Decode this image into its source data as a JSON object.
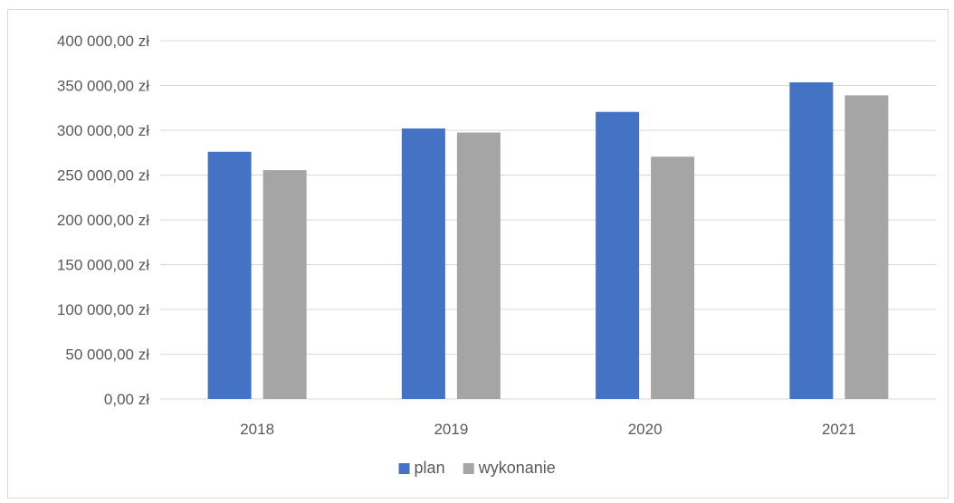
{
  "chart_data": {
    "type": "bar",
    "categories": [
      "2018",
      "2019",
      "2020",
      "2021"
    ],
    "series": [
      {
        "name": "plan",
        "values": [
          276000,
          302000,
          320500,
          353500
        ],
        "color": "#4472C4"
      },
      {
        "name": "wykonanie",
        "values": [
          255500,
          297500,
          270500,
          339000
        ],
        "color": "#A5A5A5"
      }
    ],
    "ylim": [
      0,
      400000
    ],
    "yticks": [
      {
        "value": 0,
        "label": "0,00 zł"
      },
      {
        "value": 50000,
        "label": "50 000,00 zł"
      },
      {
        "value": 100000,
        "label": "100 000,00 zł"
      },
      {
        "value": 150000,
        "label": "150 000,00 zł"
      },
      {
        "value": 200000,
        "label": "200 000,00 zł"
      },
      {
        "value": 250000,
        "label": "250 000,00 zł"
      },
      {
        "value": 300000,
        "label": "300 000,00 zł"
      },
      {
        "value": 350000,
        "label": "350 000,00 zł"
      },
      {
        "value": 400000,
        "label": "400 000,00 zł"
      }
    ],
    "grid": true,
    "gridline_color": "#D9D9D9",
    "legend_position": "bottom",
    "title": "",
    "xlabel": "",
    "ylabel": ""
  }
}
